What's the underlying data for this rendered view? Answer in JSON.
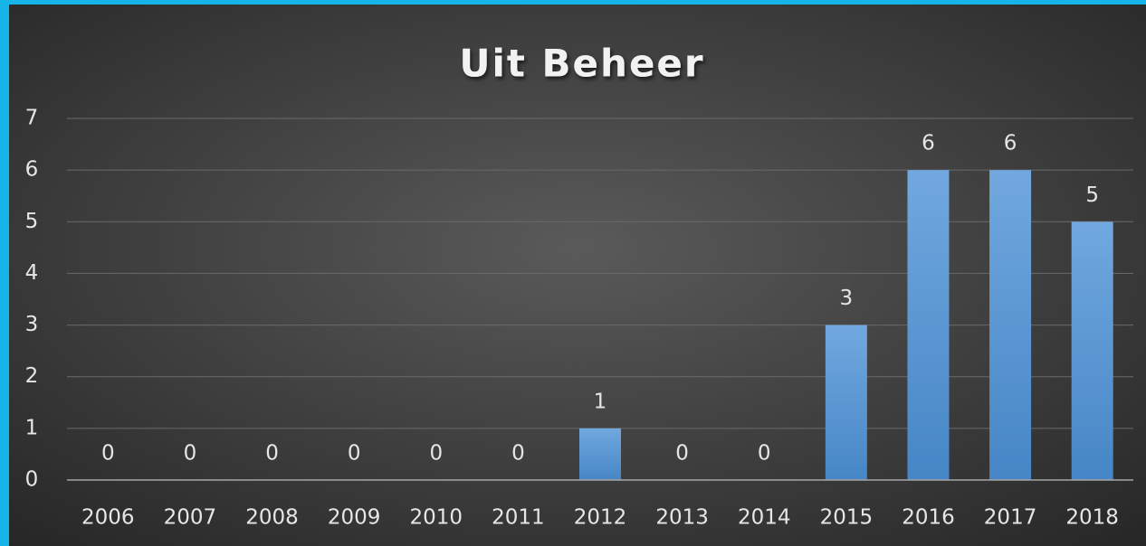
{
  "chart_data": {
    "type": "bar",
    "title": "Uit Beheer",
    "categories": [
      "2006",
      "2007",
      "2008",
      "2009",
      "2010",
      "2011",
      "2012",
      "2013",
      "2014",
      "2015",
      "2016",
      "2017",
      "2018"
    ],
    "values": [
      0,
      0,
      0,
      0,
      0,
      0,
      1,
      0,
      0,
      3,
      6,
      6,
      5
    ],
    "color": "#5b9bd5",
    "ylim": [
      0,
      7
    ],
    "yticks": [
      0,
      1,
      2,
      3,
      4,
      5,
      6,
      7
    ],
    "grid": true
  }
}
